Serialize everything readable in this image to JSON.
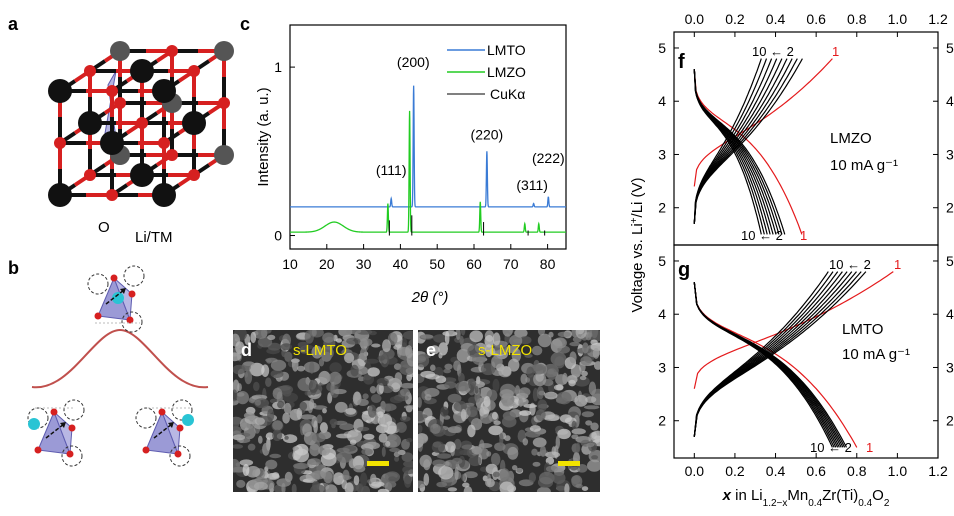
{
  "panels": {
    "a": {
      "label": "a",
      "legend_o": "O",
      "legend_tm": "Li/TM"
    },
    "b": {
      "label": "b"
    },
    "c": {
      "label": "c"
    },
    "d": {
      "label": "d",
      "title": "s-LMTO"
    },
    "e": {
      "label": "e",
      "title": "s-LMZO"
    },
    "f": {
      "label": "f",
      "annotation": "LMZO",
      "current": "10 mA g⁻¹",
      "cycle_first": "1",
      "cycle_range": "10 ← 2"
    },
    "g": {
      "label": "g",
      "annotation": "LMTO",
      "current": "10 mA g⁻¹",
      "cycle_first": "1",
      "cycle_range": "10 ← 2"
    }
  },
  "colors": {
    "lmto": "#3a7bd5",
    "lmzo": "#22cc22",
    "first_cycle": "#e41a1c",
    "atom_o": "#d62020",
    "atom_tm": "#111111",
    "polyhedron": "#7a78c8",
    "barrier": "#c0504d",
    "li_ion": "#29c4d4",
    "scalebar": "#f2e300"
  },
  "chart_data": [
    {
      "type": "line",
      "id": "xrd",
      "xlabel": "2θ (°)",
      "ylabel": "Intensity (a. u.)",
      "xlim": [
        10,
        85
      ],
      "ylim": [
        -0.08,
        1.25
      ],
      "xticks": [
        "10",
        "20",
        "30",
        "40",
        "50",
        "60",
        "70",
        "80"
      ],
      "yticks": [
        "0",
        "1"
      ],
      "legend": [
        "LMTO",
        "LMZO",
        "CuKα"
      ],
      "legend_position": "top-right",
      "peak_labels": [
        {
          "text": "(111)",
          "x": 37.5,
          "y": 0.36
        },
        {
          "text": "(200)",
          "x": 43.5,
          "y": 1.0
        },
        {
          "text": "(220)",
          "x": 63.5,
          "y": 0.57
        },
        {
          "text": "(311)",
          "x": 75.8,
          "y": 0.27
        },
        {
          "text": "(222)",
          "x": 80.2,
          "y": 0.43
        }
      ],
      "series": [
        {
          "name": "LMTO",
          "baseline": 0.17,
          "peaks": [
            {
              "x": 37.5,
              "h": 0.05
            },
            {
              "x": 43.6,
              "h": 0.72
            },
            {
              "x": 63.5,
              "h": 0.33
            },
            {
              "x": 76.2,
              "h": 0.02
            },
            {
              "x": 80.2,
              "h": 0.06
            }
          ]
        },
        {
          "name": "LMZO",
          "baseline": 0.02,
          "hump": {
            "x": 22,
            "h": 0.06,
            "w": 3.5
          },
          "peaks": [
            {
              "x": 36.6,
              "h": 0.17
            },
            {
              "x": 42.5,
              "h": 0.72
            },
            {
              "x": 61.7,
              "h": 0.18
            },
            {
              "x": 73.8,
              "h": 0.05
            },
            {
              "x": 77.6,
              "h": 0.05
            }
          ]
        }
      ]
    },
    {
      "type": "line",
      "id": "voltage",
      "xlabel": "x in Li1.2−xMn0.4Zr(Ti)0.4O2",
      "ylabel": "Voltage vs. Li+/Li (V)",
      "xlim": [
        -0.1,
        1.2
      ],
      "ylim": [
        1.3,
        5.3
      ],
      "xticks": [
        "0.0",
        "0.2",
        "0.4",
        "0.6",
        "0.8",
        "1.0",
        "1.2"
      ],
      "yticks": [
        "2",
        "3",
        "4",
        "5"
      ],
      "subplots": [
        {
          "panel": "f",
          "cycles": 10,
          "first": {
            "xmax_charge": 0.68,
            "xmax_discharge": 0.53,
            "vstart": 2.4
          },
          "tenth": {
            "xmax_charge": 0.33,
            "xmax_discharge": 0.33
          }
        },
        {
          "panel": "g",
          "cycles": 10,
          "first": {
            "xmax_charge": 0.98,
            "xmax_discharge": 0.8,
            "vstart": 2.6
          },
          "tenth": {
            "xmax_charge": 0.66,
            "xmax_discharge": 0.68
          }
        }
      ]
    }
  ]
}
